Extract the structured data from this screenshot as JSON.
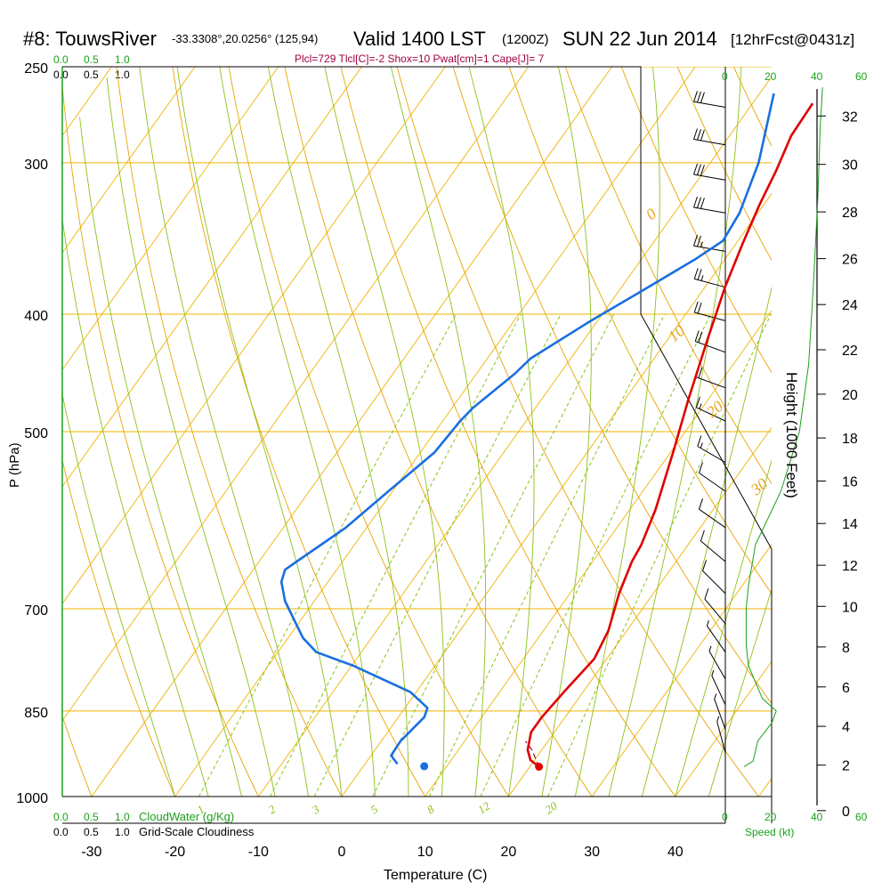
{
  "header": {
    "station": "#8: TouwsRiver",
    "coords": "-33.3308°,20.0256° (125,94)",
    "valid": "Valid 1400 LST",
    "zulu": "(1200Z)",
    "date": "SUN 22 Jun 2014",
    "forecast": "[12hrFcst@0431z]",
    "indices": "Plcl=729 Tlcl[C]=-2 Shox=10 Pwat[cm]=1 Cape[J]= 7"
  },
  "colors": {
    "temperature": "#e00000",
    "dewpoint": "#1a6fe0",
    "isotherm": "#f0b400",
    "dry_adiabat": "#e8a400",
    "moist_adiabat": "#8cc21a",
    "mixing_ratio": "#8cc21a",
    "cloud_water": "#1aa01a",
    "parcel": "#a00040"
  },
  "chart_data": {
    "type": "line",
    "title": "#8: TouwsRiver",
    "xlabel": "Temperature (C)",
    "ylabel": "P (hPa)",
    "y2label": "Height (1000 Feet)",
    "x_ticks": [
      -30,
      -20,
      -10,
      0,
      10,
      20,
      30,
      40
    ],
    "p_ticks": [
      250,
      300,
      400,
      500,
      700,
      850,
      1000
    ],
    "height_ticks": [
      0,
      2,
      4,
      6,
      8,
      10,
      12,
      14,
      16,
      18,
      20,
      22,
      24,
      26,
      28,
      30,
      32
    ],
    "xlim": [
      -34,
      36
    ],
    "plim": [
      1000,
      250
    ],
    "isotherm_labels": [
      "10",
      "0",
      "-10",
      "-20",
      "-30"
    ],
    "isotherm_label_values": [
      10,
      0,
      -10,
      -20,
      -30
    ],
    "dry_adiabat_labels": [
      "0",
      "10",
      "20",
      "30"
    ],
    "dry_adiabat_label_values": [
      0,
      10,
      20,
      30
    ],
    "mixing_ratio_labels": [
      "1",
      "2",
      "3",
      "5",
      "8",
      "12",
      "20"
    ],
    "mixing_ratio_values": [
      1,
      2,
      3,
      5,
      8,
      12,
      20
    ],
    "cloudiness_ticks": [
      "0.0",
      "0.5",
      "1.0"
    ],
    "cloud_water_label": "CloudWater (g/Kg)",
    "cloudiness_label": "Grid-Scale Cloudiness",
    "wind_speed_ticks": [
      "0",
      "20",
      "40",
      "60"
    ],
    "wind_speed_label": "Speed (kt)",
    "series": [
      {
        "name": "Temperature",
        "points": [
          {
            "t": 21.1,
            "p": 945
          },
          {
            "t": 19.5,
            "p": 933
          },
          {
            "t": 18.3,
            "p": 915
          },
          {
            "t": 17.2,
            "p": 885
          },
          {
            "t": 17.2,
            "p": 860
          },
          {
            "t": 17.7,
            "p": 820
          },
          {
            "t": 18.5,
            "p": 770
          },
          {
            "t": 17.8,
            "p": 730
          },
          {
            "t": 15.9,
            "p": 680
          },
          {
            "t": 14.7,
            "p": 640
          },
          {
            "t": 14.4,
            "p": 620
          },
          {
            "t": 13.1,
            "p": 580
          },
          {
            "t": 10.3,
            "p": 520
          },
          {
            "t": 7.6,
            "p": 470
          },
          {
            "t": 4.8,
            "p": 420
          },
          {
            "t": 2.4,
            "p": 380
          },
          {
            "t": 0.8,
            "p": 350
          },
          {
            "t": -0.5,
            "p": 325
          },
          {
            "t": -1.4,
            "p": 305
          },
          {
            "t": -2.6,
            "p": 285
          },
          {
            "t": -2.8,
            "p": 268
          }
        ]
      },
      {
        "name": "Dewpoint",
        "points": [
          {
            "t": 3.9,
            "p": 940
          },
          {
            "t": 2.4,
            "p": 925
          },
          {
            "t": 2.3,
            "p": 900
          },
          {
            "t": 3.1,
            "p": 860
          },
          {
            "t": 2.7,
            "p": 845
          },
          {
            "t": -0.7,
            "p": 820
          },
          {
            "t": -9.8,
            "p": 780
          },
          {
            "t": -15.4,
            "p": 760
          },
          {
            "t": -18.2,
            "p": 740
          },
          {
            "t": -23.5,
            "p": 690
          },
          {
            "t": -25.6,
            "p": 665
          },
          {
            "t": -26.2,
            "p": 650
          },
          {
            "t": -25.5,
            "p": 640
          },
          {
            "t": -22.5,
            "p": 600
          },
          {
            "t": -20.5,
            "p": 560
          },
          {
            "t": -18.3,
            "p": 520
          },
          {
            "t": -17.9,
            "p": 490
          },
          {
            "t": -17.5,
            "p": 478
          },
          {
            "t": -15.4,
            "p": 448
          },
          {
            "t": -14.8,
            "p": 435
          },
          {
            "t": -10.8,
            "p": 405
          },
          {
            "t": -7.6,
            "p": 385
          },
          {
            "t": -3.5,
            "p": 360
          },
          {
            "t": -1.8,
            "p": 348
          },
          {
            "t": -2.2,
            "p": 330
          },
          {
            "t": -4.2,
            "p": 300
          },
          {
            "t": -8.3,
            "p": 263
          }
        ]
      },
      {
        "name": "Parcel",
        "points": [
          {
            "t": 21.1,
            "p": 945
          },
          {
            "t": 18.8,
            "p": 915
          },
          {
            "t": 17.3,
            "p": 900
          }
        ]
      }
    ],
    "surface_temperature": {
      "t": 21.1,
      "p": 945
    },
    "surface_dewpoint": {
      "t": 7.3,
      "p": 944
    },
    "winds": [
      {
        "p": 270,
        "speed_kt": 32,
        "dir": 280
      },
      {
        "p": 290,
        "speed_kt": 30,
        "dir": 280
      },
      {
        "p": 310,
        "speed_kt": 30,
        "dir": 280
      },
      {
        "p": 330,
        "speed_kt": 28,
        "dir": 280
      },
      {
        "p": 355,
        "speed_kt": 26,
        "dir": 280
      },
      {
        "p": 380,
        "speed_kt": 24,
        "dir": 285
      },
      {
        "p": 405,
        "speed_kt": 22,
        "dir": 285
      },
      {
        "p": 430,
        "speed_kt": 20,
        "dir": 290
      },
      {
        "p": 460,
        "speed_kt": 18,
        "dir": 290
      },
      {
        "p": 490,
        "speed_kt": 16,
        "dir": 295
      },
      {
        "p": 530,
        "speed_kt": 14,
        "dir": 300
      },
      {
        "p": 560,
        "speed_kt": 12,
        "dir": 305
      },
      {
        "p": 600,
        "speed_kt": 11,
        "dir": 305
      },
      {
        "p": 640,
        "speed_kt": 10,
        "dir": 310
      },
      {
        "p": 680,
        "speed_kt": 9,
        "dir": 315
      },
      {
        "p": 720,
        "speed_kt": 8,
        "dir": 320
      },
      {
        "p": 760,
        "speed_kt": 7,
        "dir": 325
      },
      {
        "p": 800,
        "speed_kt": 6,
        "dir": 330
      },
      {
        "p": 840,
        "speed_kt": 5,
        "dir": 335
      },
      {
        "p": 880,
        "speed_kt": 4,
        "dir": 340
      },
      {
        "p": 920,
        "speed_kt": 3,
        "dir": 345
      }
    ],
    "wind_speed_profile": [
      {
        "p": 945,
        "kt": 8
      },
      {
        "p": 935,
        "kt": 12
      },
      {
        "p": 900,
        "kt": 14
      },
      {
        "p": 870,
        "kt": 20
      },
      {
        "p": 850,
        "kt": 22
      },
      {
        "p": 830,
        "kt": 16
      },
      {
        "p": 780,
        "kt": 10
      },
      {
        "p": 750,
        "kt": 9
      },
      {
        "p": 700,
        "kt": 9
      },
      {
        "p": 670,
        "kt": 10
      },
      {
        "p": 620,
        "kt": 13
      },
      {
        "p": 560,
        "kt": 24
      },
      {
        "p": 500,
        "kt": 32
      },
      {
        "p": 440,
        "kt": 36
      },
      {
        "p": 380,
        "kt": 38
      },
      {
        "p": 320,
        "kt": 40
      },
      {
        "p": 280,
        "kt": 41
      },
      {
        "p": 260,
        "kt": 42
      }
    ]
  }
}
